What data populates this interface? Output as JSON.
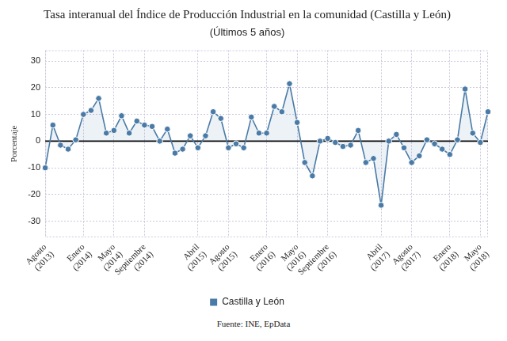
{
  "chart_data": {
    "type": "line",
    "title": "Tasa interanual del Índice de Producción Industrial en la comunidad (Castilla y León)",
    "subtitle": "(Últimos 5 años)",
    "y_label": "Porcentaje",
    "source": "Fuente: INE, EpData",
    "categories": [
      "Agosto (2013)",
      null,
      null,
      null,
      null,
      "Enero (2014)",
      null,
      null,
      null,
      "Mayo (2014)",
      null,
      null,
      null,
      "Septiembre (2014)",
      null,
      null,
      null,
      null,
      null,
      null,
      "Abril (2015)",
      null,
      null,
      null,
      "Agosto (2015)",
      null,
      null,
      null,
      null,
      "Enero (2016)",
      null,
      null,
      null,
      "Mayo (2016)",
      null,
      null,
      null,
      "Septiembre (2016)",
      null,
      null,
      null,
      null,
      null,
      null,
      "Abril (2017)",
      null,
      null,
      null,
      "Agosto (2017)",
      null,
      null,
      null,
      null,
      "Enero (2018)",
      null,
      null,
      null,
      "Mayo (2018)",
      null
    ],
    "series": [
      {
        "name": "Castilla y León",
        "color": "#4a7ba7",
        "values": [
          -10,
          6,
          -1.5,
          -3,
          0.5,
          10,
          11.5,
          16,
          3,
          4,
          9.5,
          3,
          7.5,
          6,
          5.5,
          0,
          4.5,
          -4.5,
          -3,
          2,
          -2.5,
          2,
          11,
          8.5,
          -2.5,
          -1,
          -2.5,
          9,
          3,
          3,
          13,
          11,
          21.5,
          7,
          -8,
          -13,
          0,
          1,
          -0.5,
          -2,
          -1.5,
          4,
          -8,
          -6.5,
          -24,
          0,
          2.5,
          -2.5,
          -8,
          -5.5,
          0.5,
          -1,
          -3,
          -5,
          0.5,
          19.5,
          3,
          -0.5,
          11
        ]
      }
    ],
    "ylim": [
      -36,
      34
    ],
    "yticks": [
      -30,
      -20,
      -10,
      0,
      10,
      20,
      30
    ],
    "grid": true,
    "legend": "bottom",
    "marker": "circle"
  }
}
